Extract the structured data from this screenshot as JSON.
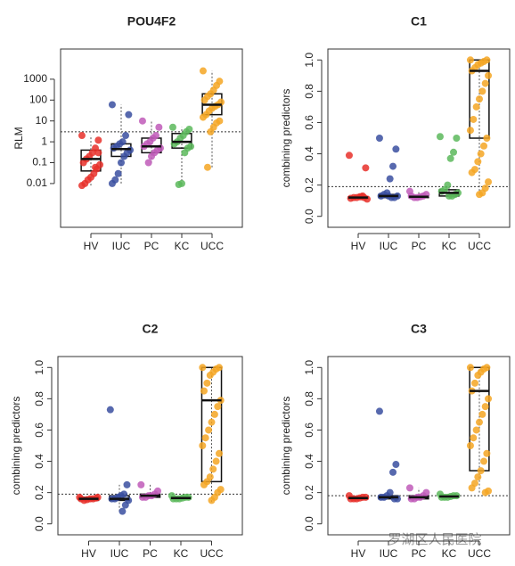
{
  "chart_data": [
    {
      "type": "box",
      "title": "POU4F2",
      "ylabel": "RLM",
      "log": true,
      "ylim": [
        8e-05,
        28000
      ],
      "yticks": [
        0.01,
        0.1,
        1,
        10,
        100,
        1000
      ],
      "threshold": 3,
      "categories": [
        "HV",
        "IUC",
        "PC",
        "KC",
        "UCC"
      ],
      "groups": [
        {
          "color": "#e8302a",
          "low": 0.008,
          "q1": 0.04,
          "median": 0.15,
          "q3": 0.4,
          "high": 2,
          "points": [
            2,
            1.2,
            0.5,
            0.3,
            0.2,
            0.15,
            0.1,
            0.08,
            0.05,
            0.03,
            0.02,
            0.015,
            0.01,
            0.008,
            0.3,
            0.06
          ]
        },
        {
          "color": "#3a4fa0",
          "low": 0.01,
          "q1": 0.2,
          "median": 0.45,
          "q3": 0.8,
          "high": 60,
          "points": [
            60,
            20,
            2,
            1,
            0.8,
            0.6,
            0.5,
            0.4,
            0.3,
            0.2,
            0.1,
            0.03,
            0.015,
            0.01
          ]
        },
        {
          "color": "#c05ab8",
          "low": 0.1,
          "q1": 0.3,
          "median": 0.6,
          "q3": 1.5,
          "high": 10,
          "points": [
            10,
            5,
            2,
            1.5,
            1,
            0.8,
            0.6,
            0.5,
            0.4,
            0.3,
            0.2,
            0.1
          ]
        },
        {
          "color": "#5cb85c",
          "low": 0.009,
          "q1": 0.5,
          "median": 1,
          "q3": 2.5,
          "high": 5,
          "points": [
            5,
            4,
            3,
            2,
            1.5,
            1,
            0.8,
            0.6,
            0.5,
            0.3,
            0.01,
            0.009
          ]
        },
        {
          "color": "#f5a623",
          "low": 0.06,
          "q1": 20,
          "median": 60,
          "q3": 200,
          "high": 2500,
          "points": [
            2500,
            800,
            500,
            300,
            200,
            150,
            100,
            80,
            60,
            50,
            40,
            30,
            20,
            15,
            10,
            8,
            5,
            3,
            0.06
          ]
        }
      ]
    },
    {
      "type": "box",
      "title": "C1",
      "ylabel": "combining predictors",
      "log": false,
      "ylim": [
        -0.07,
        1.07
      ],
      "yticks": [
        {
          "value": 0,
          "label": "0.0"
        },
        0.2,
        0.4,
        0.6,
        0.8,
        {
          "value": 1,
          "label": "1.0"
        }
      ],
      "threshold": 0.19,
      "categories": [
        "HV",
        "IUC",
        "PC",
        "KC",
        "UCC"
      ],
      "groups": [
        {
          "color": "#e8302a",
          "low": 0.11,
          "q1": 0.115,
          "median": 0.12,
          "q3": 0.125,
          "high": 0.13,
          "points": [
            0.39,
            0.31,
            0.13,
            0.125,
            0.12,
            0.12,
            0.115,
            0.11,
            0.12,
            0.125
          ]
        },
        {
          "color": "#3a4fa0",
          "low": 0.12,
          "q1": 0.12,
          "median": 0.13,
          "q3": 0.14,
          "high": 0.15,
          "points": [
            0.5,
            0.43,
            0.32,
            0.24,
            0.15,
            0.14,
            0.13,
            0.13,
            0.12,
            0.12,
            0.13
          ]
        },
        {
          "color": "#c05ab8",
          "low": 0.12,
          "q1": 0.12,
          "median": 0.125,
          "q3": 0.13,
          "high": 0.16,
          "points": [
            0.16,
            0.14,
            0.13,
            0.125,
            0.12,
            0.12,
            0.13
          ]
        },
        {
          "color": "#5cb85c",
          "low": 0.13,
          "q1": 0.13,
          "median": 0.15,
          "q3": 0.17,
          "high": 0.2,
          "points": [
            0.51,
            0.5,
            0.41,
            0.37,
            0.2,
            0.17,
            0.16,
            0.15,
            0.14,
            0.13,
            0.13
          ]
        },
        {
          "color": "#f5a623",
          "low": 0.14,
          "q1": 0.5,
          "median": 0.93,
          "q3": 1.0,
          "high": 1.0,
          "points": [
            1.0,
            1.0,
            0.99,
            0.98,
            0.97,
            0.95,
            0.93,
            0.9,
            0.85,
            0.8,
            0.75,
            0.7,
            0.62,
            0.55,
            0.5,
            0.45,
            0.4,
            0.35,
            0.3,
            0.28,
            0.22,
            0.18,
            0.15,
            0.14
          ]
        }
      ]
    },
    {
      "type": "box",
      "title": "C2",
      "ylabel": "combining predictors",
      "log": false,
      "ylim": [
        -0.07,
        1.07
      ],
      "yticks": [
        {
          "value": 0,
          "label": "0.0"
        },
        0.2,
        0.4,
        0.6,
        0.8,
        {
          "value": 1,
          "label": "1.0"
        }
      ],
      "threshold": 0.19,
      "categories": [
        "HV",
        "IUC",
        "PC",
        "KC",
        "UCC"
      ],
      "groups": [
        {
          "color": "#e8302a",
          "low": 0.15,
          "q1": 0.15,
          "median": 0.16,
          "q3": 0.17,
          "high": 0.17,
          "points": [
            0.17,
            0.165,
            0.16,
            0.16,
            0.155,
            0.15,
            0.16,
            0.17
          ]
        },
        {
          "color": "#3a4fa0",
          "low": 0.08,
          "q1": 0.15,
          "median": 0.16,
          "q3": 0.18,
          "high": 0.25,
          "points": [
            0.73,
            0.25,
            0.19,
            0.18,
            0.17,
            0.16,
            0.16,
            0.15,
            0.12,
            0.08
          ]
        },
        {
          "color": "#c05ab8",
          "low": 0.17,
          "q1": 0.17,
          "median": 0.18,
          "q3": 0.19,
          "high": 0.25,
          "points": [
            0.25,
            0.21,
            0.19,
            0.18,
            0.18,
            0.17,
            0.17
          ]
        },
        {
          "color": "#5cb85c",
          "low": 0.16,
          "q1": 0.16,
          "median": 0.165,
          "q3": 0.17,
          "high": 0.18,
          "points": [
            0.18,
            0.17,
            0.17,
            0.165,
            0.16,
            0.16,
            0.16
          ]
        },
        {
          "color": "#f5a623",
          "low": 0.14,
          "q1": 0.27,
          "median": 0.79,
          "q3": 1.0,
          "high": 1.0,
          "points": [
            1.0,
            1.0,
            0.99,
            0.97,
            0.95,
            0.9,
            0.85,
            0.79,
            0.75,
            0.7,
            0.65,
            0.6,
            0.55,
            0.5,
            0.45,
            0.4,
            0.35,
            0.3,
            0.27,
            0.25,
            0.22,
            0.2,
            0.17,
            0.15
          ]
        }
      ]
    },
    {
      "type": "box",
      "title": "C3",
      "ylabel": "combining predictors",
      "log": false,
      "ylim": [
        -0.07,
        1.07
      ],
      "yticks": [
        {
          "value": 0,
          "label": "0.0"
        },
        0.2,
        0.4,
        0.6,
        0.8,
        {
          "value": 1,
          "label": "1.0"
        }
      ],
      "threshold": 0.18,
      "categories": [
        "HV",
        "IUC",
        "PC",
        "KC",
        "UCC"
      ],
      "groups": [
        {
          "color": "#e8302a",
          "low": 0.16,
          "q1": 0.16,
          "median": 0.165,
          "q3": 0.17,
          "high": 0.18,
          "points": [
            0.18,
            0.17,
            0.17,
            0.165,
            0.16,
            0.16,
            0.16
          ]
        },
        {
          "color": "#3a4fa0",
          "low": 0.16,
          "q1": 0.16,
          "median": 0.17,
          "q3": 0.18,
          "high": 0.2,
          "points": [
            0.72,
            0.38,
            0.33,
            0.2,
            0.18,
            0.17,
            0.17,
            0.16,
            0.16
          ]
        },
        {
          "color": "#c05ab8",
          "low": 0.16,
          "q1": 0.16,
          "median": 0.17,
          "q3": 0.18,
          "high": 0.23,
          "points": [
            0.23,
            0.2,
            0.18,
            0.17,
            0.17,
            0.16,
            0.16
          ]
        },
        {
          "color": "#5cb85c",
          "low": 0.17,
          "q1": 0.17,
          "median": 0.175,
          "q3": 0.18,
          "high": 0.19,
          "points": [
            0.19,
            0.18,
            0.18,
            0.175,
            0.17,
            0.17,
            0.17
          ]
        },
        {
          "color": "#f5a623",
          "low": 0.2,
          "q1": 0.34,
          "median": 0.85,
          "q3": 1.0,
          "high": 1.0,
          "points": [
            1.0,
            1.0,
            0.99,
            0.97,
            0.95,
            0.9,
            0.85,
            0.8,
            0.75,
            0.7,
            0.65,
            0.6,
            0.55,
            0.5,
            0.45,
            0.4,
            0.34,
            0.3,
            0.26,
            0.23,
            0.21,
            0.2
          ]
        }
      ]
    }
  ],
  "watermark": "罗湖区人民医院"
}
